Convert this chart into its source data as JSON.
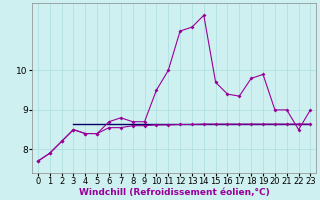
{
  "xlabel": "Windchill (Refroidissement éolien,°C)",
  "bg_color": "#cff0f0",
  "line1_x": [
    0,
    1,
    2,
    3,
    4,
    5,
    6,
    7,
    8,
    9,
    10,
    11,
    12,
    13,
    14,
    15,
    16,
    17,
    18,
    19,
    20,
    21,
    22,
    23
  ],
  "line1_y": [
    7.7,
    7.9,
    8.2,
    8.5,
    8.4,
    8.4,
    8.7,
    8.8,
    8.7,
    8.7,
    9.5,
    10.0,
    11.0,
    11.1,
    11.4,
    9.7,
    9.4,
    9.35,
    9.8,
    9.9,
    9.0,
    9.0,
    8.5,
    9.0
  ],
  "line2_x": [
    0,
    1,
    2,
    3,
    4,
    5,
    6,
    7,
    8,
    9,
    10,
    11,
    12,
    13,
    14,
    15,
    16,
    17,
    18,
    19,
    20,
    21,
    22,
    23
  ],
  "line2_y": [
    7.7,
    7.9,
    8.2,
    8.5,
    8.4,
    8.4,
    8.55,
    8.55,
    8.6,
    8.6,
    8.62,
    8.62,
    8.63,
    8.63,
    8.64,
    8.64,
    8.64,
    8.64,
    8.64,
    8.64,
    8.64,
    8.64,
    8.64,
    8.64
  ],
  "hline_y": 8.64,
  "hline_x_start": 3,
  "hline_x_end": 23,
  "line_color": "#990099",
  "hline_color": "#000066",
  "marker": "D",
  "marker_size": 2.0,
  "xlim": [
    -0.5,
    23.5
  ],
  "ylim": [
    7.4,
    11.7
  ],
  "yticks": [
    8,
    9,
    10
  ],
  "xticks": [
    0,
    1,
    2,
    3,
    4,
    5,
    6,
    7,
    8,
    9,
    10,
    11,
    12,
    13,
    14,
    15,
    16,
    17,
    18,
    19,
    20,
    21,
    22,
    23
  ],
  "grid_color": "#aadddd",
  "xlabel_fontsize": 6.5,
  "tick_fontsize": 6.0,
  "line_width": 0.8
}
